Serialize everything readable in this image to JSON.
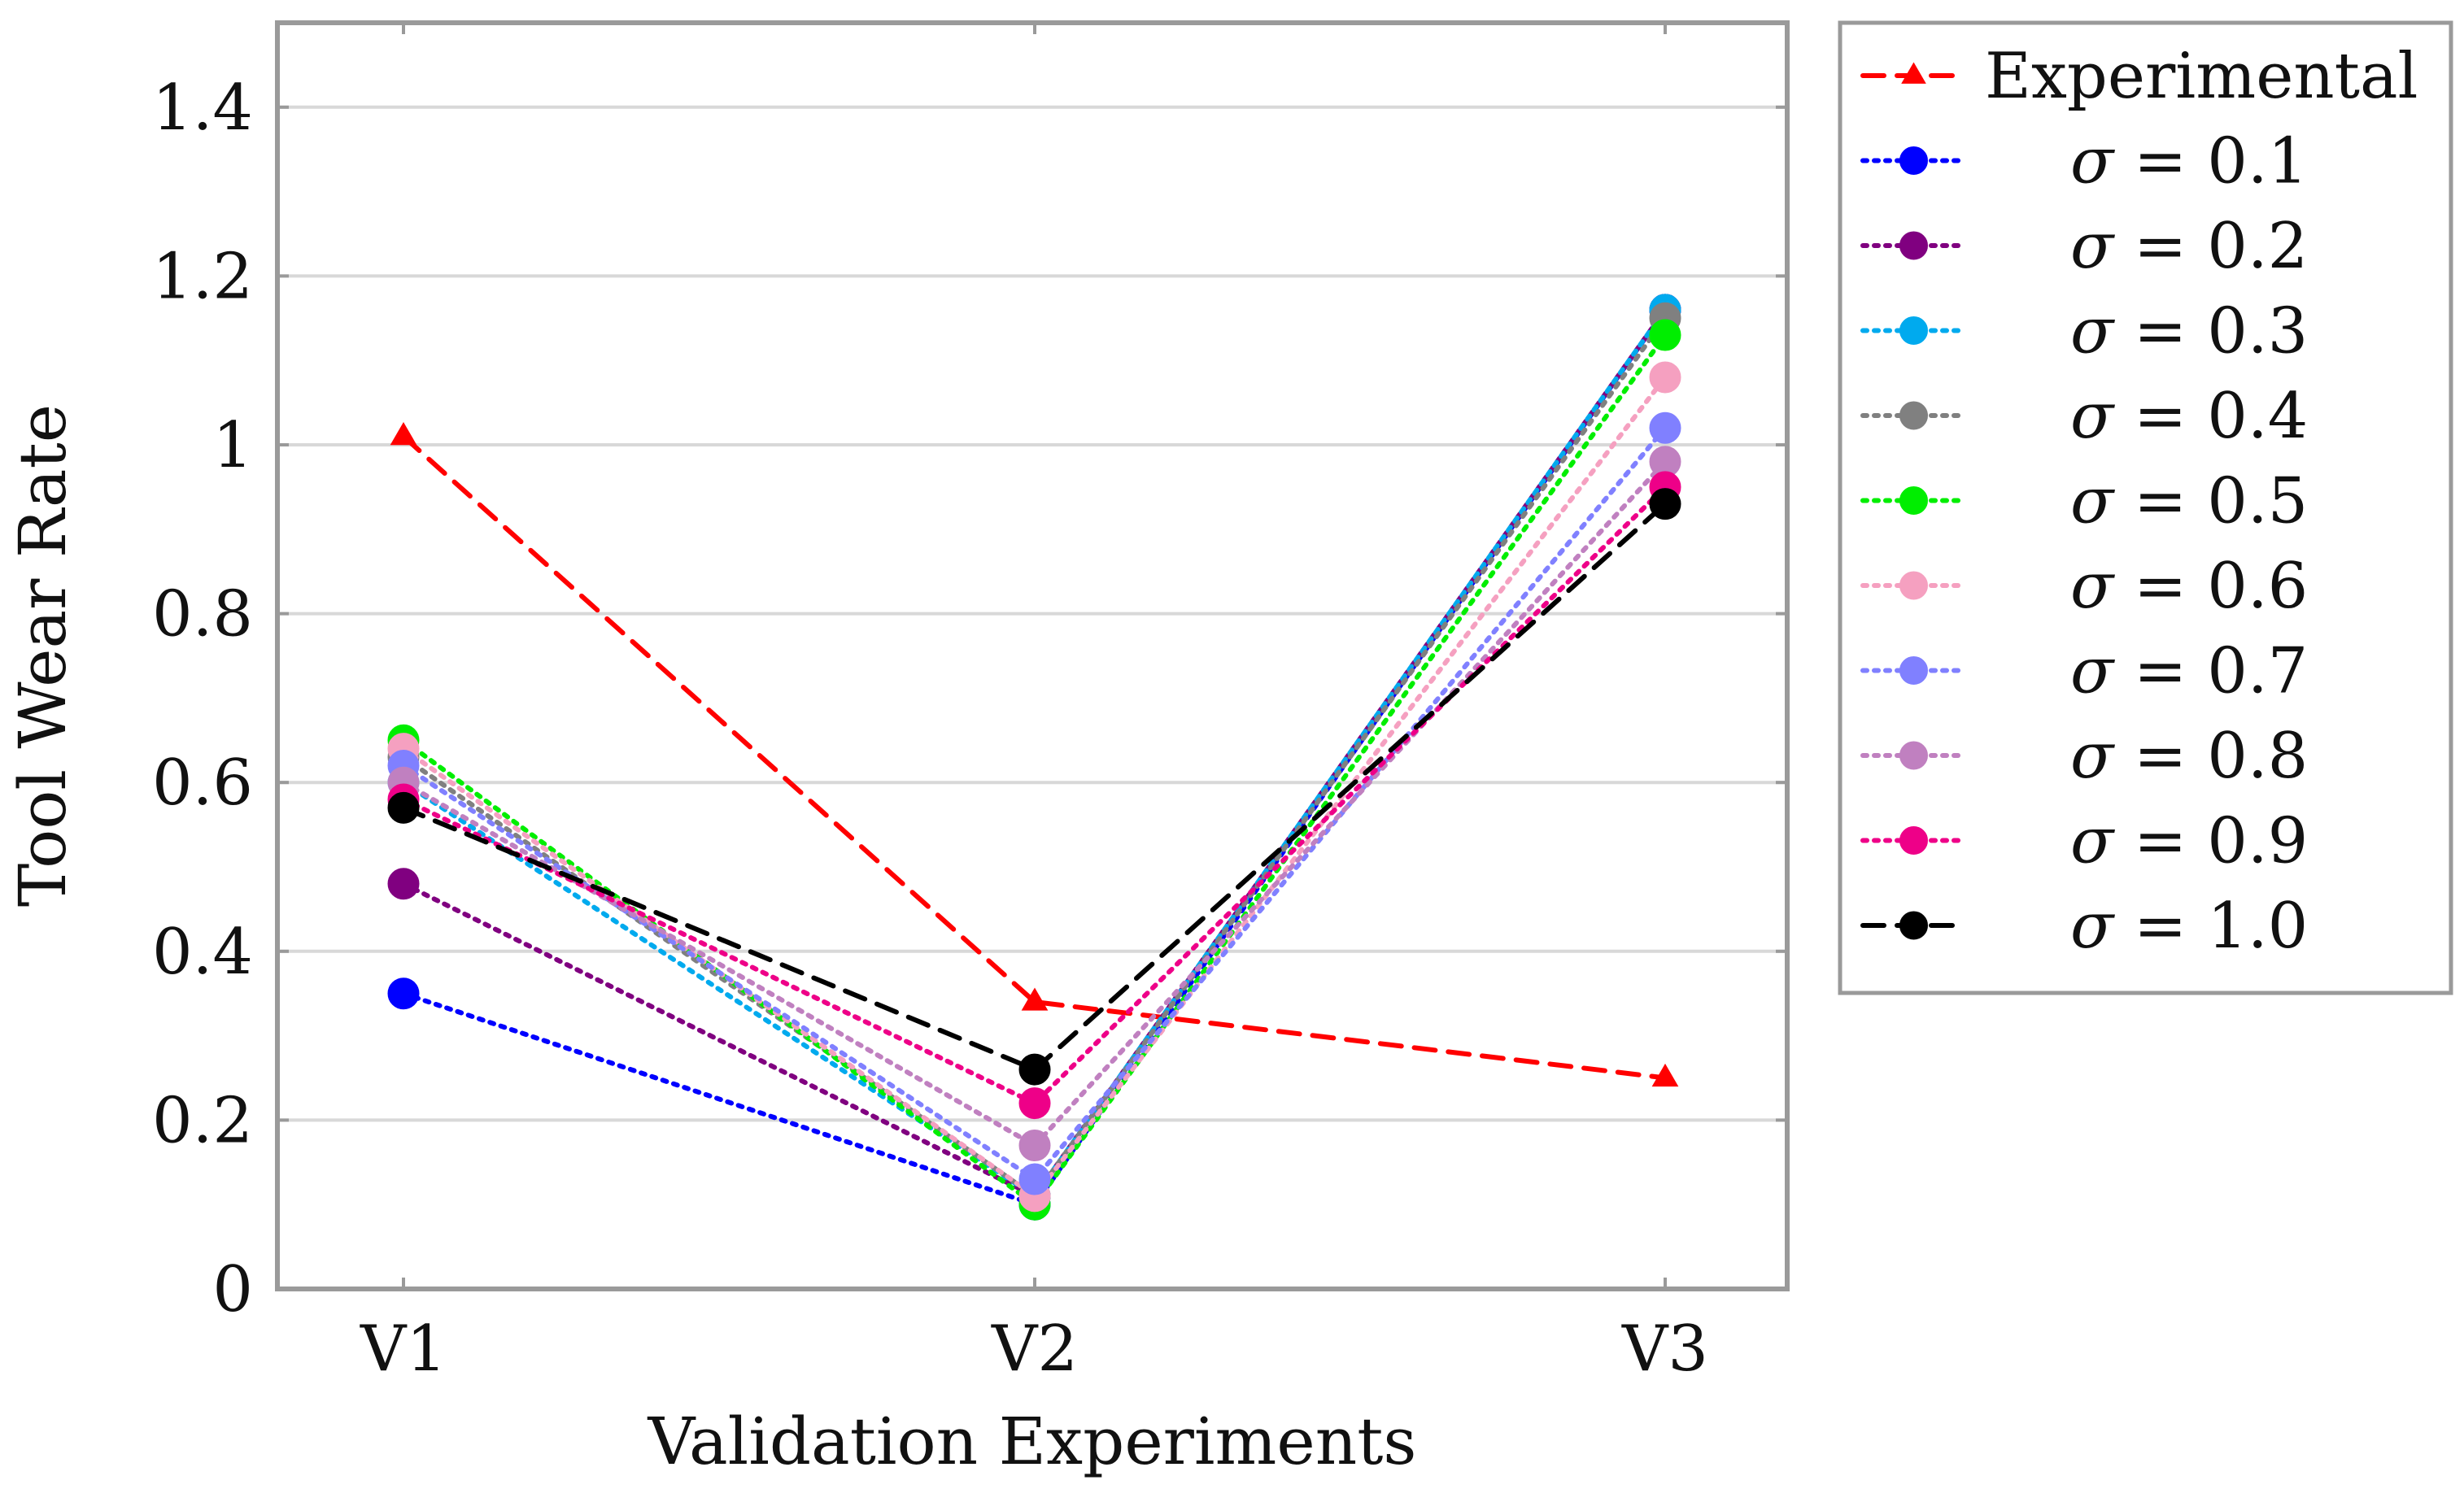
{
  "chart_data": {
    "type": "line",
    "xlabel": "Validation Experiments",
    "ylabel": "Tool Wear Rate",
    "categories": [
      "V1",
      "V2",
      "V3"
    ],
    "ylim": [
      0,
      1.5
    ],
    "yticks": [
      0,
      0.2,
      0.4,
      0.6,
      0.8,
      1,
      1.2,
      1.4
    ],
    "ytick_labels": [
      "0",
      "0.2",
      "0.4",
      "0.6",
      "0.8",
      "1",
      "1.2",
      "1.4"
    ],
    "grid": "horizontal",
    "legend_position": "outside-right",
    "series": [
      {
        "name": "Experimental",
        "legend_prefix": "",
        "legend_value": "Experimental",
        "values": [
          1.01,
          0.34,
          0.25
        ],
        "color": "#ff0000",
        "marker": "triangle",
        "dash": "dashed"
      },
      {
        "name": "σ = 0.1",
        "legend_prefix": "σ",
        "legend_value": " = 0.1",
        "values": [
          0.35,
          0.1,
          1.16
        ],
        "color": "#0000ff",
        "marker": "circle",
        "dash": "dotted"
      },
      {
        "name": "σ = 0.2",
        "legend_prefix": "σ",
        "legend_value": " = 0.2",
        "values": [
          0.48,
          0.11,
          1.16
        ],
        "color": "#800080",
        "marker": "circle",
        "dash": "dotted"
      },
      {
        "name": "σ = 0.3",
        "legend_prefix": "σ",
        "legend_value": " = 0.3",
        "values": [
          0.6,
          0.11,
          1.16
        ],
        "color": "#00aaee",
        "marker": "circle",
        "dash": "dotted"
      },
      {
        "name": "σ = 0.4",
        "legend_prefix": "σ",
        "legend_value": " = 0.4",
        "values": [
          0.63,
          0.11,
          1.15
        ],
        "color": "#808080",
        "marker": "circle",
        "dash": "dotted"
      },
      {
        "name": "σ = 0.5",
        "legend_prefix": "σ",
        "legend_value": " = 0.5",
        "values": [
          0.65,
          0.1,
          1.13
        ],
        "color": "#00ee00",
        "marker": "circle",
        "dash": "dotted"
      },
      {
        "name": "σ = 0.6",
        "legend_prefix": "σ",
        "legend_value": " = 0.6",
        "values": [
          0.64,
          0.11,
          1.08
        ],
        "color": "#f5a0c0",
        "marker": "circle",
        "dash": "dotted"
      },
      {
        "name": "σ = 0.7",
        "legend_prefix": "σ",
        "legend_value": " = 0.7",
        "values": [
          0.62,
          0.13,
          1.02
        ],
        "color": "#8080ff",
        "marker": "circle",
        "dash": "dotted"
      },
      {
        "name": "σ = 0.8",
        "legend_prefix": "σ",
        "legend_value": " = 0.8",
        "values": [
          0.6,
          0.17,
          0.98
        ],
        "color": "#c080c0",
        "marker": "circle",
        "dash": "dotted"
      },
      {
        "name": "σ = 0.9",
        "legend_prefix": "σ",
        "legend_value": " = 0.9",
        "values": [
          0.58,
          0.22,
          0.95
        ],
        "color": "#ee0088",
        "marker": "circle",
        "dash": "dotted"
      },
      {
        "name": "σ = 1.0",
        "legend_prefix": "σ",
        "legend_value": " = 1.0",
        "values": [
          0.57,
          0.26,
          0.93
        ],
        "color": "#000000",
        "marker": "circle",
        "dash": "dashed"
      }
    ]
  }
}
